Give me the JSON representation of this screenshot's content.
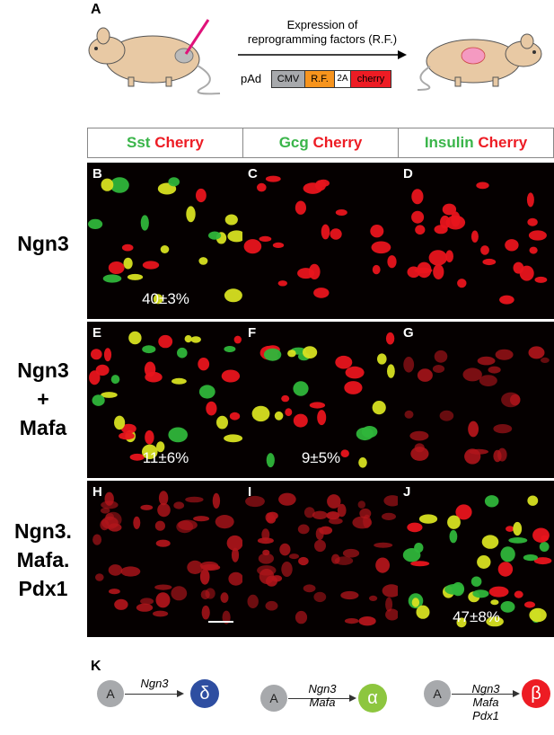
{
  "panel_a": {
    "letter": "A",
    "arrow_text_line1": "Expression of",
    "arrow_text_line2": "reprogramming factors (R.F.)",
    "construct_prefix": "pAd",
    "construct_parts": [
      "CMV",
      "R.F.",
      "2A",
      "cherry"
    ]
  },
  "headers": [
    {
      "green": "Sst",
      "red": "Cherry"
    },
    {
      "green": "Gcg",
      "red": "Cherry"
    },
    {
      "green": "Insulin",
      "red": "Cherry"
    }
  ],
  "rows": [
    {
      "label_lines": [
        "Ngn3"
      ]
    },
    {
      "label_lines": [
        "Ngn3",
        "+",
        "Mafa"
      ]
    },
    {
      "label_lines": [
        "Ngn3.",
        "Mafa.",
        "Pdx1"
      ]
    }
  ],
  "panels": [
    {
      "letter": "B",
      "percent": "40±3%"
    },
    {
      "letter": "C",
      "percent": ""
    },
    {
      "letter": "D",
      "percent": ""
    },
    {
      "letter": "E",
      "percent": "11±6%"
    },
    {
      "letter": "F",
      "percent": "9±5%"
    },
    {
      "letter": "G",
      "percent": ""
    },
    {
      "letter": "H",
      "percent": ""
    },
    {
      "letter": "I",
      "percent": ""
    },
    {
      "letter": "J",
      "percent": "47±8%"
    }
  ],
  "panel_k": {
    "letter": "K",
    "source_label": "A",
    "paths": [
      {
        "genes": [
          "Ngn3"
        ],
        "target_symbol": "δ",
        "target_color": "#2e4ea1"
      },
      {
        "genes": [
          "Ngn3",
          "Mafa"
        ],
        "target_symbol": "α",
        "target_color": "#8dc63f"
      },
      {
        "genes": [
          "Ngn3",
          "Mafa",
          "Pdx1"
        ],
        "target_symbol": "β",
        "target_color": "#ed1c24"
      }
    ]
  },
  "colors": {
    "green": "#3ab54a",
    "red": "#ed1c24",
    "mouse_body": "#e8c9a4",
    "injection": "#e0127a"
  }
}
